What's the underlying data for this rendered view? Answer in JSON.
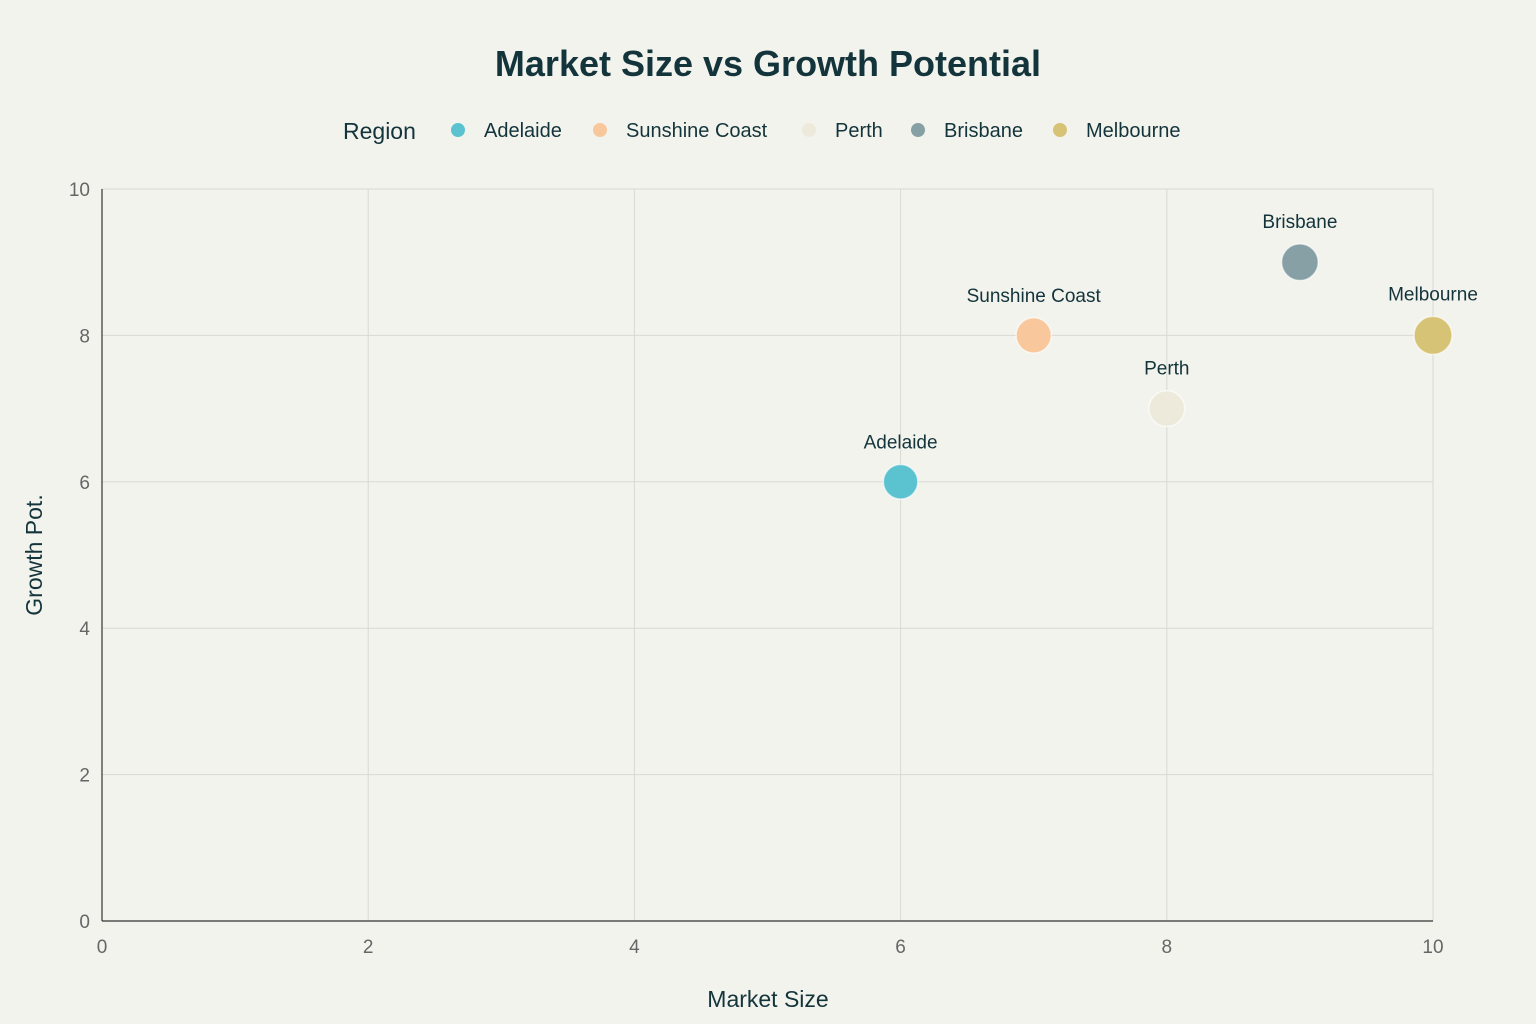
{
  "chart_data": {
    "type": "scatter",
    "title": "Market Size vs Growth Potential",
    "xlabel": "Market Size",
    "ylabel": "Growth Pot.",
    "xlim": [
      0,
      10
    ],
    "ylim": [
      0,
      10
    ],
    "x_ticks": [
      "0",
      "2",
      "4",
      "6",
      "8",
      "10"
    ],
    "y_ticks": [
      "0",
      "2",
      "4",
      "6",
      "8",
      "10"
    ],
    "grid": true,
    "legend": {
      "title": "Region",
      "placement": "top",
      "entries": [
        "Adelaide",
        "Sunshine Coast",
        "Perth",
        "Brisbane",
        "Melbourne"
      ]
    },
    "series": [
      {
        "name": "Adelaide",
        "x": 6,
        "y": 6,
        "label": "Adelaide",
        "color": "#5bc2d0",
        "bubble": 0.75
      },
      {
        "name": "Sunshine Coast",
        "x": 7,
        "y": 8,
        "label": "Sunshine Coast",
        "color": "#f9c79c",
        "bubble": 0.8
      },
      {
        "name": "Perth",
        "x": 8,
        "y": 7,
        "label": "Perth",
        "color": "#eeeadb",
        "bubble": 0.85
      },
      {
        "name": "Brisbane",
        "x": 9,
        "y": 9,
        "label": "Brisbane",
        "color": "#86a0a5",
        "bubble": 0.9
      },
      {
        "name": "Melbourne",
        "x": 10,
        "y": 8,
        "label": "Melbourne",
        "color": "#d7c375",
        "bubble": 1.0
      }
    ]
  }
}
